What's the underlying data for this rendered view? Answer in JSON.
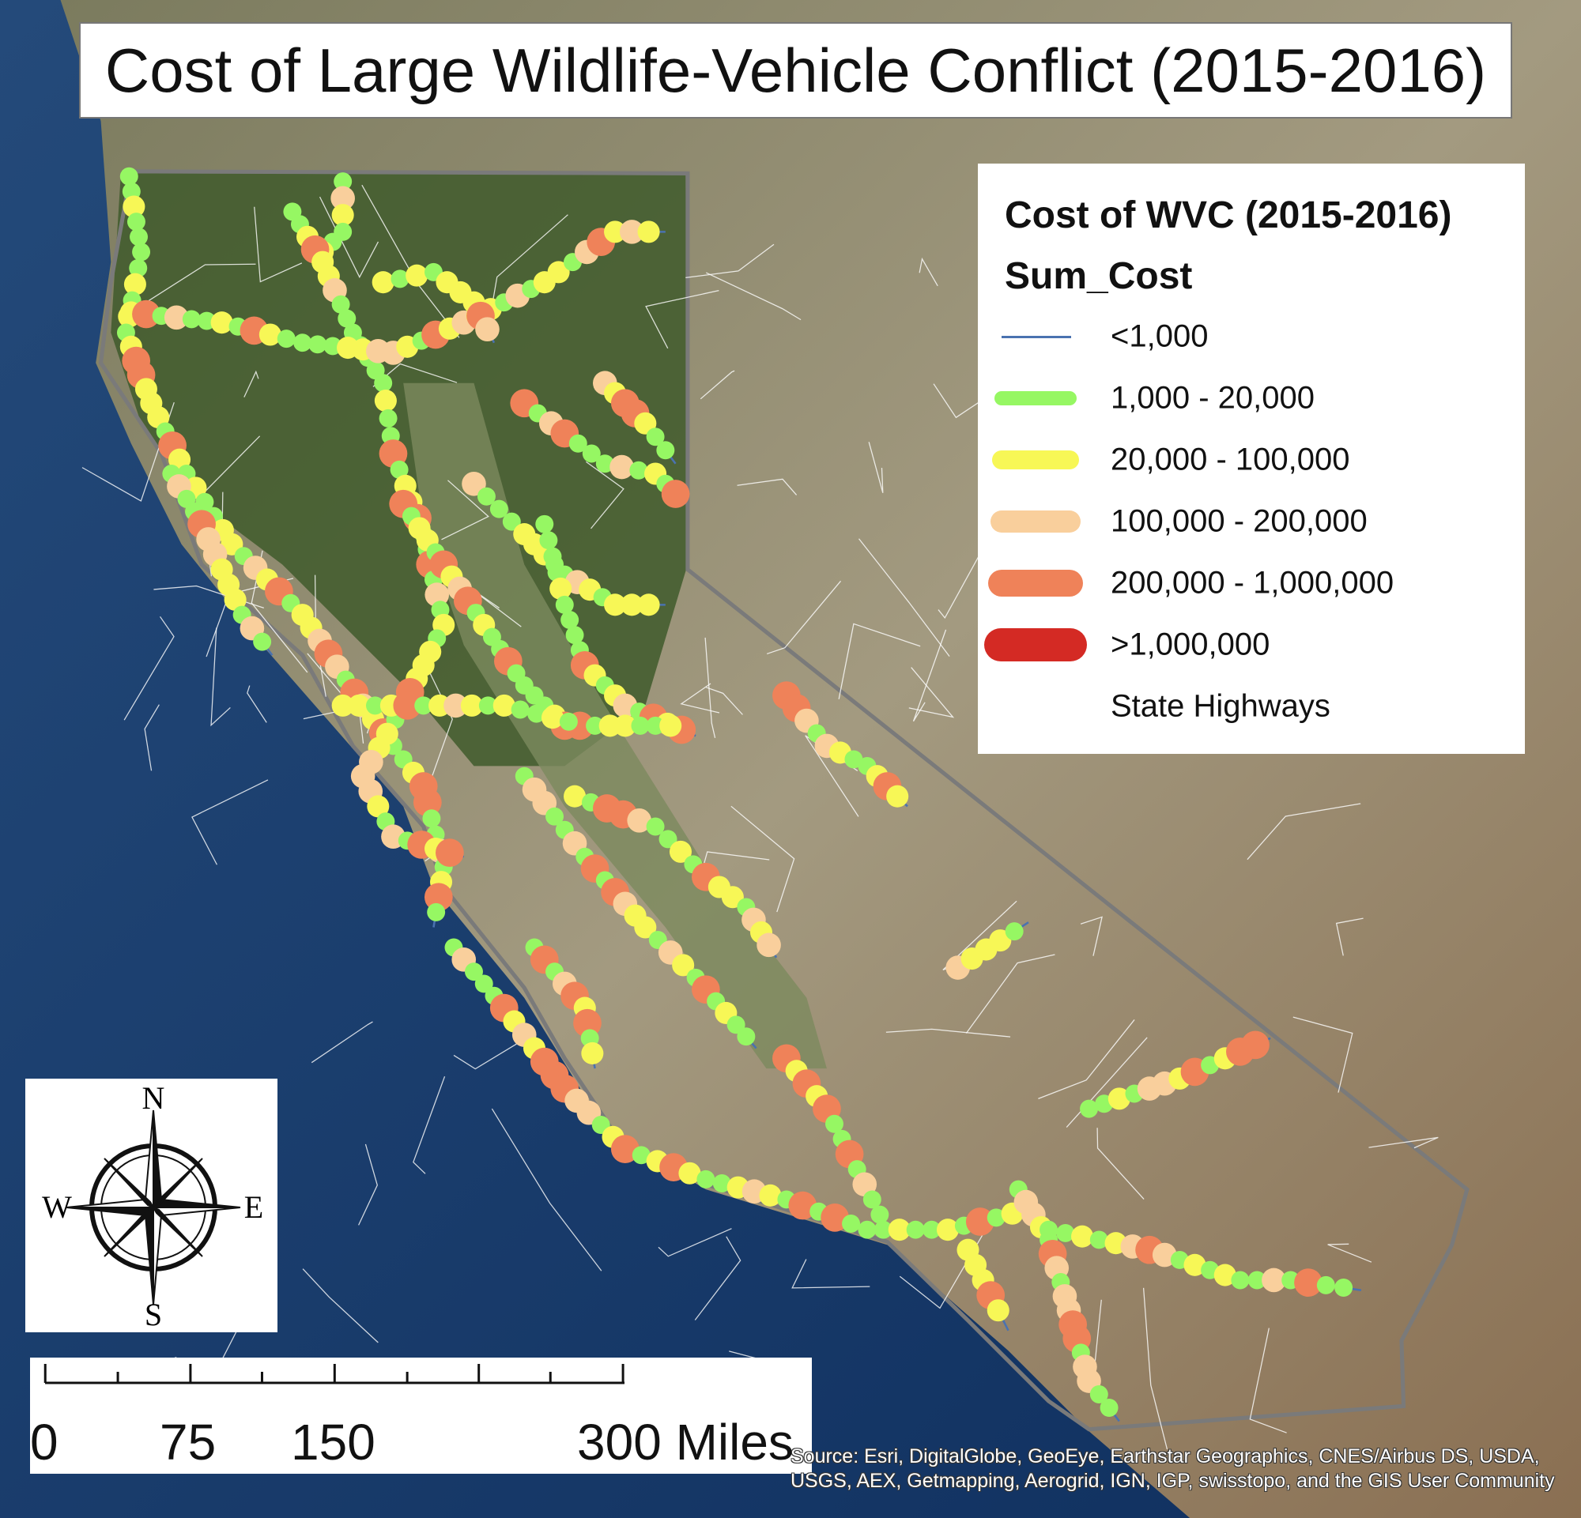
{
  "title": "Cost of Large Wildlife-Vehicle Conflict (2015-2016)",
  "legend": {
    "title": "Cost of WVC (2015-2016)",
    "field": "Sum_Cost",
    "classes": [
      {
        "label": "<1,000",
        "color": "#4a72b0",
        "symbol": "line"
      },
      {
        "label": "1,000 - 20,000",
        "color": "#96f763",
        "symbol": "band"
      },
      {
        "label": "20,000 - 100,000",
        "color": "#f7f756",
        "symbol": "band"
      },
      {
        "label": "100,000 - 200,000",
        "color": "#f9cf9c",
        "symbol": "band"
      },
      {
        "label": "200,000 - 1,000,000",
        "color": "#ef8259",
        "symbol": "band"
      },
      {
        "label": ">1,000,000",
        "color": "#d42a24",
        "symbol": "band"
      }
    ],
    "highways_label": "State Highways"
  },
  "compass": {
    "n": "N",
    "s": "S",
    "e": "E",
    "w": "W"
  },
  "scale_bar": {
    "labels": [
      "0",
      "75",
      "150",
      "300 Miles"
    ],
    "unit": "Miles"
  },
  "credits": "Source: Esri, DigitalGlobe, GeoEye, Earthstar Geographics, CNES/Airbus DS, USDA, USGS, AEX, Getmapping, Aerogrid, IGN, IGP, swisstopo, and the GIS User Community",
  "colors": {
    "ocean": "#153a6e",
    "land": "#8d8466",
    "forest": "#3e5a2e",
    "boundary": "#7a7a7a",
    "highway": "#ffffff"
  }
}
